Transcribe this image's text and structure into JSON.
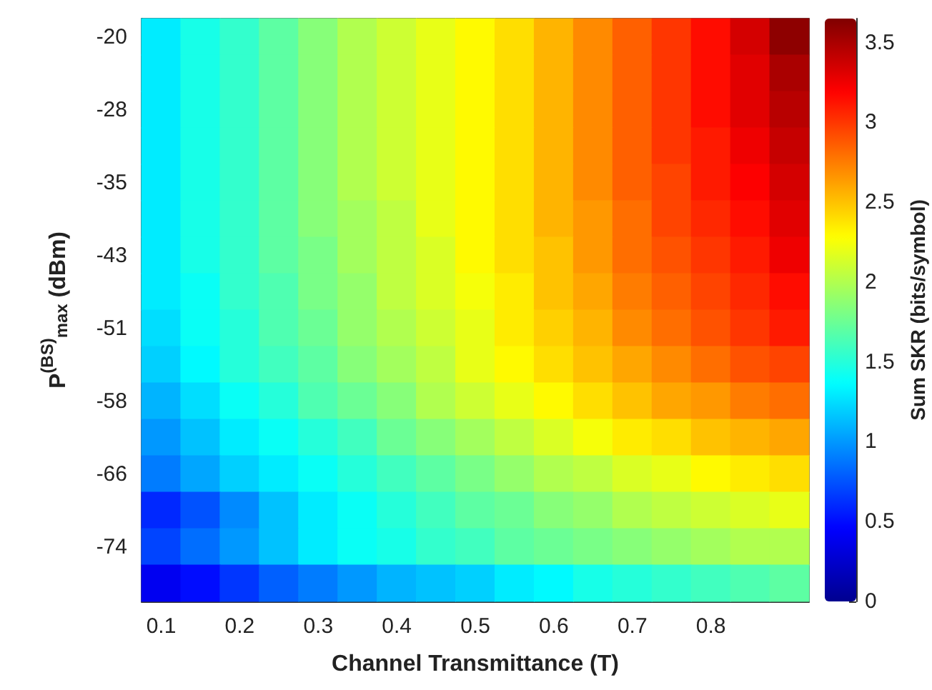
{
  "chart_data": {
    "type": "heatmap",
    "xlabel": "Channel Transmittance (T)",
    "ylabel": "P$^{(BS)}$$_{max}$ (dBm)",
    "clabel": "Sum SKR (bits/symbol)",
    "categories": [
      "0.1",
      null,
      "0.2",
      null,
      "0.3",
      null,
      "0.4",
      null,
      "0.5",
      null,
      "0.6",
      null,
      "0.7",
      null,
      "0.8",
      null,
      null
    ],
    "y_categories": [
      "-20",
      null,
      "-28",
      null,
      "-35",
      null,
      "-43",
      null,
      "-51",
      null,
      "-58",
      null,
      "-66",
      null,
      "-74",
      null
    ],
    "cells": [
      [
        1.3,
        1.45,
        1.55,
        1.7,
        1.85,
        2.0,
        2.1,
        2.2,
        2.3,
        2.4,
        2.55,
        2.7,
        2.85,
        3.0,
        3.15,
        3.35,
        3.6
      ],
      [
        1.3,
        1.45,
        1.55,
        1.7,
        1.85,
        2.0,
        2.1,
        2.2,
        2.3,
        2.4,
        2.55,
        2.7,
        2.85,
        3.0,
        3.15,
        3.3,
        3.5
      ],
      [
        1.3,
        1.45,
        1.55,
        1.7,
        1.85,
        2.0,
        2.1,
        2.2,
        2.3,
        2.4,
        2.55,
        2.7,
        2.85,
        3.0,
        3.15,
        3.3,
        3.45
      ],
      [
        1.3,
        1.45,
        1.55,
        1.7,
        1.85,
        2.0,
        2.1,
        2.2,
        2.3,
        2.4,
        2.55,
        2.7,
        2.85,
        3.0,
        3.1,
        3.25,
        3.4
      ],
      [
        1.3,
        1.45,
        1.55,
        1.7,
        1.85,
        2.0,
        2.1,
        2.2,
        2.3,
        2.4,
        2.55,
        2.7,
        2.85,
        2.95,
        3.1,
        3.2,
        3.35
      ],
      [
        1.3,
        1.45,
        1.55,
        1.7,
        1.85,
        1.95,
        2.05,
        2.2,
        2.3,
        2.4,
        2.55,
        2.65,
        2.8,
        2.95,
        3.05,
        3.15,
        3.3
      ],
      [
        1.3,
        1.45,
        1.55,
        1.7,
        1.8,
        1.95,
        2.05,
        2.15,
        2.3,
        2.4,
        2.5,
        2.65,
        2.8,
        2.9,
        3.0,
        3.1,
        3.25
      ],
      [
        1.3,
        1.4,
        1.55,
        1.65,
        1.8,
        1.9,
        2.05,
        2.15,
        2.25,
        2.35,
        2.5,
        2.6,
        2.75,
        2.85,
        2.95,
        3.05,
        3.15
      ],
      [
        1.25,
        1.4,
        1.5,
        1.65,
        1.75,
        1.9,
        2.0,
        2.1,
        2.2,
        2.35,
        2.45,
        2.55,
        2.7,
        2.8,
        2.9,
        3.0,
        3.1
      ],
      [
        1.2,
        1.35,
        1.5,
        1.6,
        1.7,
        1.85,
        1.95,
        2.05,
        2.2,
        2.3,
        2.4,
        2.5,
        2.6,
        2.7,
        2.8,
        2.9,
        2.95
      ],
      [
        1.1,
        1.25,
        1.4,
        1.5,
        1.65,
        1.75,
        1.85,
        2.0,
        2.1,
        2.2,
        2.3,
        2.4,
        2.5,
        2.6,
        2.65,
        2.75,
        2.8
      ],
      [
        1.0,
        1.15,
        1.3,
        1.4,
        1.5,
        1.6,
        1.75,
        1.85,
        1.95,
        2.05,
        2.15,
        2.25,
        2.35,
        2.4,
        2.5,
        2.55,
        2.6
      ],
      [
        0.9,
        1.05,
        1.2,
        1.3,
        1.4,
        1.5,
        1.6,
        1.7,
        1.8,
        1.9,
        2.0,
        2.05,
        2.15,
        2.2,
        2.3,
        2.35,
        2.4
      ],
      [
        0.6,
        0.75,
        0.95,
        1.15,
        1.3,
        1.4,
        1.5,
        1.6,
        1.7,
        1.75,
        1.85,
        1.9,
        2.0,
        2.05,
        2.1,
        2.15,
        2.2
      ],
      [
        0.7,
        0.85,
        1.0,
        1.15,
        1.3,
        1.4,
        1.45,
        1.55,
        1.6,
        1.7,
        1.75,
        1.8,
        1.85,
        1.9,
        1.95,
        2.0,
        2.0
      ],
      [
        0.4,
        0.5,
        0.65,
        0.8,
        0.9,
        1.0,
        1.1,
        1.15,
        1.2,
        1.3,
        1.35,
        1.45,
        1.5,
        1.55,
        1.6,
        1.65,
        1.7
      ]
    ],
    "clim": [
      0,
      3.65
    ],
    "cticks": [
      0,
      0.5,
      1,
      1.5,
      2,
      2.5,
      3,
      3.5
    ]
  }
}
